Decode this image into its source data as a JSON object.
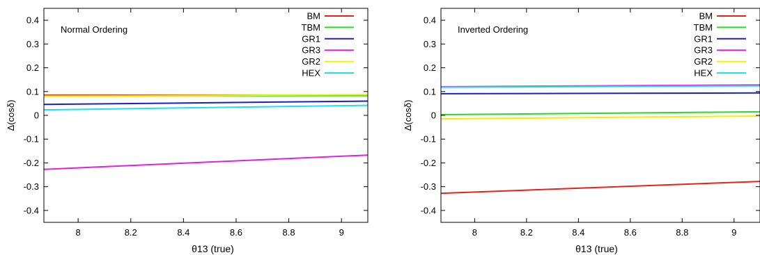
{
  "chart_data": [
    {
      "type": "line",
      "annotation": "Normal Ordering",
      "xlabel": "θ13 (true)",
      "ylabel": "Δ(cosδ)",
      "xlim": [
        7.87,
        9.1
      ],
      "ylim": [
        -0.45,
        0.45
      ],
      "xticks": [
        8,
        8.2,
        8.4,
        8.6,
        8.8,
        9
      ],
      "xtick_labels": [
        "8",
        "8.2",
        "8.4",
        "8.6",
        "8.8",
        "9"
      ],
      "yticks": [
        0.4,
        0.3,
        0.2,
        0.1,
        0,
        -0.1,
        -0.2,
        -0.3,
        -0.4
      ],
      "ytick_labels": [
        "0.4",
        "0.3",
        "0.2",
        "0.1",
        "0",
        "-0.1",
        "-0.2",
        "-0.3",
        "-0.4"
      ],
      "grid": false,
      "legend_position": "top-right",
      "series": [
        {
          "name": "BM",
          "color": "#e8201c",
          "x": [
            7.87,
            9.1
          ],
          "y": [
            0.085,
            0.085
          ]
        },
        {
          "name": "TBM",
          "color": "#22dd22",
          "x": [
            7.87,
            9.1
          ],
          "y": [
            0.082,
            0.083
          ]
        },
        {
          "name": "GR1",
          "color": "#1f1fbf",
          "x": [
            7.87,
            9.1
          ],
          "y": [
            0.046,
            0.06
          ]
        },
        {
          "name": "GR3",
          "color": "#e020e0",
          "x": [
            7.87,
            9.1
          ],
          "y": [
            -0.227,
            -0.167
          ]
        },
        {
          "name": "GR2",
          "color": "#f0f000",
          "x": [
            7.87,
            9.1
          ],
          "y": [
            0.08,
            0.087
          ]
        },
        {
          "name": "HEX",
          "color": "#20e0e8",
          "x": [
            7.87,
            9.1
          ],
          "y": [
            0.023,
            0.042
          ]
        }
      ]
    },
    {
      "type": "line",
      "annotation": "Inverted Ordering",
      "xlabel": "θ13 (true)",
      "ylabel": "Δ(cosδ)",
      "xlim": [
        7.87,
        9.1
      ],
      "ylim": [
        -0.45,
        0.45
      ],
      "xticks": [
        8,
        8.2,
        8.4,
        8.6,
        8.8,
        9
      ],
      "xtick_labels": [
        "8",
        "8.2",
        "8.4",
        "8.6",
        "8.8",
        "9"
      ],
      "yticks": [
        0.4,
        0.3,
        0.2,
        0.1,
        0,
        -0.1,
        -0.2,
        -0.3,
        -0.4
      ],
      "ytick_labels": [
        "0.4",
        "0.3",
        "0.2",
        "0.1",
        "0",
        "-0.1",
        "-0.2",
        "-0.3",
        "-0.4"
      ],
      "grid": false,
      "legend_position": "top-right",
      "series": [
        {
          "name": "BM",
          "color": "#e8201c",
          "x": [
            7.87,
            9.1
          ],
          "y": [
            -0.328,
            -0.278
          ]
        },
        {
          "name": "TBM",
          "color": "#22dd22",
          "x": [
            7.87,
            9.1
          ],
          "y": [
            0.003,
            0.015
          ]
        },
        {
          "name": "GR1",
          "color": "#1f1fbf",
          "x": [
            7.87,
            9.1
          ],
          "y": [
            0.091,
            0.094
          ]
        },
        {
          "name": "GR3",
          "color": "#e020e0",
          "x": [
            7.87,
            9.1
          ],
          "y": [
            0.12,
            0.128
          ]
        },
        {
          "name": "GR2",
          "color": "#f0f000",
          "x": [
            7.87,
            9.1
          ],
          "y": [
            -0.015,
            -0.003
          ]
        },
        {
          "name": "HEX",
          "color": "#20e0e8",
          "x": [
            7.87,
            9.1
          ],
          "y": [
            0.118,
            0.124
          ]
        }
      ]
    }
  ]
}
